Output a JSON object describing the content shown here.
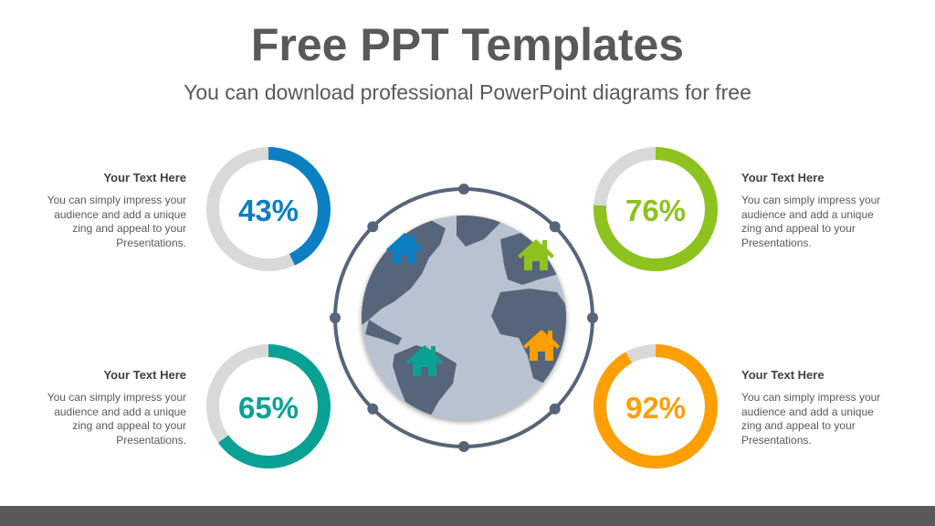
{
  "header": {
    "title": "Free PPT Templates",
    "subtitle": "You can download professional PowerPoint diagrams for free"
  },
  "items": [
    {
      "heading": "Your Text Here",
      "body": "You can simply impress your audience and add a unique zing and appeal to your Presentations.",
      "percent": 43,
      "label": "43%",
      "color": "#0A7FC2",
      "icon": "house-icon"
    },
    {
      "heading": "Your Text Here",
      "body": "You can simply impress your audience and add a unique zing and appeal to your Presentations.",
      "percent": 76,
      "label": "76%",
      "color": "#8DC21F",
      "icon": "house-icon"
    },
    {
      "heading": "Your Text Here",
      "body": "You can simply impress your audience and add a unique zing and appeal to your Presentations.",
      "percent": 65,
      "label": "65%",
      "color": "#0AA195",
      "icon": "house-icon"
    },
    {
      "heading": "Your Text Here",
      "body": "You can simply impress your audience and add a unique zing and appeal to your Presentations.",
      "percent": 92,
      "label": "92%",
      "color": "#FF9F00",
      "icon": "house-icon"
    }
  ],
  "colors": {
    "track": "#D9D9D9",
    "globe_land": "#56657A",
    "globe_ocean": "#B8C2D0",
    "text": "#595959"
  }
}
